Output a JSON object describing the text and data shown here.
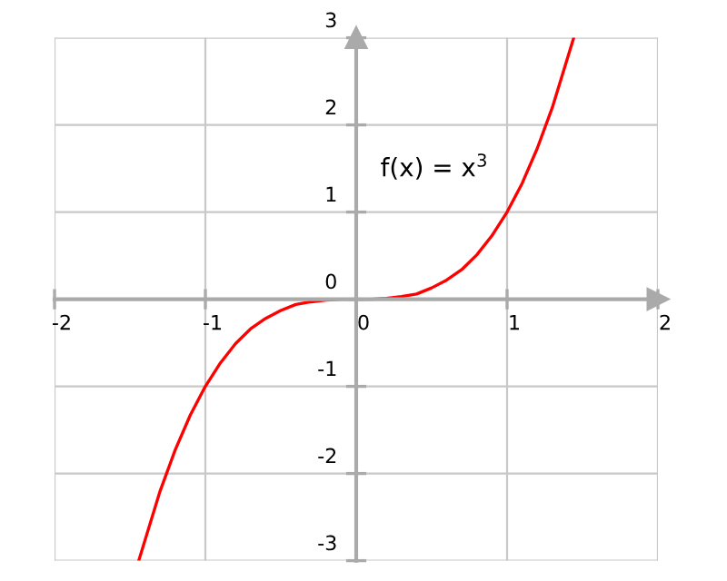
{
  "chart_data": {
    "type": "line",
    "annotations": [
      "f(x) = x$^{3}$"
    ],
    "x": [
      -1.44,
      -1.3,
      -1.2,
      -1.1,
      -1.0,
      -0.9,
      -0.8,
      -0.7,
      -0.6,
      -0.5,
      -0.4,
      -0.3,
      -0.2,
      -0.1,
      0,
      0.1,
      0.2,
      0.3,
      0.4,
      0.5,
      0.6,
      0.7,
      0.8,
      0.9,
      1.0,
      1.1,
      1.2,
      1.3,
      1.44
    ],
    "series": [
      {
        "color": "#ff0000",
        "values": [
          -2.99,
          -2.2,
          -1.73,
          -1.33,
          -1.0,
          -0.73,
          -0.51,
          -0.34,
          -0.22,
          -0.13,
          -0.06,
          -0.03,
          -0.01,
          0.0,
          0,
          0.0,
          0.01,
          0.03,
          0.06,
          0.13,
          0.22,
          0.34,
          0.51,
          0.73,
          1.0,
          1.33,
          1.73,
          2.2,
          2.99
        ]
      }
    ],
    "xlim": [
      -2,
      2
    ],
    "ylim": [
      -3,
      3
    ],
    "xticks": [
      -2,
      -1,
      0,
      1,
      2
    ],
    "yticks": [
      -3,
      -2,
      -1,
      0,
      1,
      2,
      3
    ],
    "grid": true,
    "marker": "none",
    "line_style": "solid"
  }
}
